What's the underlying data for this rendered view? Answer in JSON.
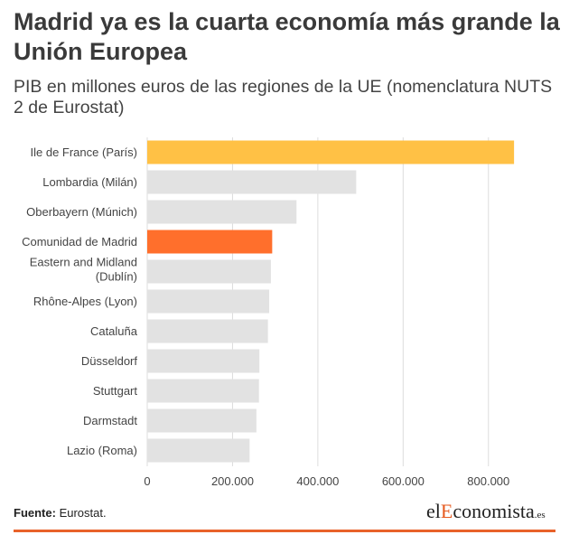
{
  "title": "Madrid ya es la cuarta economía más grande la Unión Europea",
  "subtitle": "PIB en millones euros de las regiones de la UE (nomenclatura NUTS 2 de Eurostat)",
  "colors": {
    "highlight_first": "#ffc145",
    "highlight_madrid": "#ff6f2c",
    "default_bar": "#e2e2e2",
    "axis_text": "#444444",
    "grid": "#dcdcdc",
    "rule": "#e8622a"
  },
  "chart_data": {
    "type": "bar",
    "orientation": "horizontal",
    "categories": [
      "Ile de France (París)",
      "Lombardia (Milán)",
      "Oberbayern (Múnich)",
      "Comunidad de Madrid",
      "Eastern and Midland (Dublín)",
      "Rhône-Alpes (Lyon)",
      "Cataluña",
      "Düsseldorf",
      "Stuttgart",
      "Darmstadt",
      "Lazio (Roma)"
    ],
    "values": [
      860000,
      490000,
      350000,
      293000,
      290000,
      286000,
      283000,
      263000,
      262000,
      256000,
      240000
    ],
    "highlight": [
      {
        "index": 0,
        "color": "#ffc145"
      },
      {
        "index": 3,
        "color": "#ff6f2c"
      }
    ],
    "xlim": [
      0,
      900000
    ],
    "xticks": [
      0,
      200000,
      400000,
      600000,
      800000
    ],
    "xtick_labels": [
      "0",
      "200.000",
      "400.000",
      "600.000",
      "800.000"
    ],
    "grid": true
  },
  "footer": {
    "source_label": "Fuente:",
    "source_text": "Eurostat.",
    "logo_part1": "el",
    "logo_part2": "E",
    "logo_part3": "conomista",
    "logo_part4": ".es"
  }
}
